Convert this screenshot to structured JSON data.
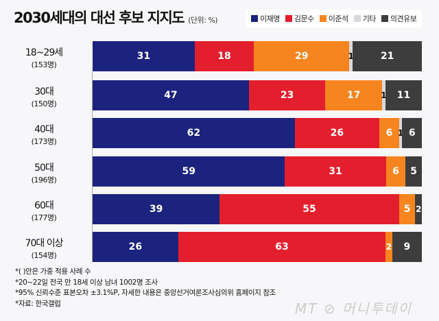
{
  "chart_data": {
    "type": "bar",
    "orientation": "horizontal",
    "stacked": true,
    "title": "2030세대의 대선 후보 지지도",
    "unit": "(단위: %)",
    "categories": [
      {
        "label": "18~29세",
        "sample": "(153명)"
      },
      {
        "label": "30대",
        "sample": "(150명)"
      },
      {
        "label": "40대",
        "sample": "(173명)"
      },
      {
        "label": "50대",
        "sample": "(196명)"
      },
      {
        "label": "60대",
        "sample": "(177명)"
      },
      {
        "label": "70대 이상",
        "sample": "(154명)"
      }
    ],
    "series": [
      {
        "name": "이재명",
        "color": "#1b237f",
        "values": [
          31,
          47,
          62,
          59,
          39,
          26
        ]
      },
      {
        "name": "김문수",
        "color": "#e41f2d",
        "values": [
          18,
          23,
          26,
          31,
          55,
          63
        ]
      },
      {
        "name": "이준석",
        "color": "#f7851f",
        "values": [
          29,
          17,
          6,
          6,
          5,
          2
        ]
      },
      {
        "name": "기타",
        "color": "#d8d9de",
        "values": [
          1,
          1,
          1,
          null,
          null,
          null
        ]
      },
      {
        "name": "의견유보",
        "color": "#3d3d3d",
        "values": [
          21,
          11,
          6,
          5,
          2,
          9
        ]
      }
    ],
    "legend": "top-right",
    "grid": false
  },
  "notes": [
    "*( )안은 가중 적용 사례 수",
    "*20~22일 전국 만 18세 이상 남녀 1002명 조사",
    "*95% 신뢰수준 표본오차 ±3.1%P, 자세한 내용은 중앙선거여론조사심의위 홈페이지 참조",
    "*자료: 한국갤럽"
  ],
  "logo": "MT 머니투데이"
}
